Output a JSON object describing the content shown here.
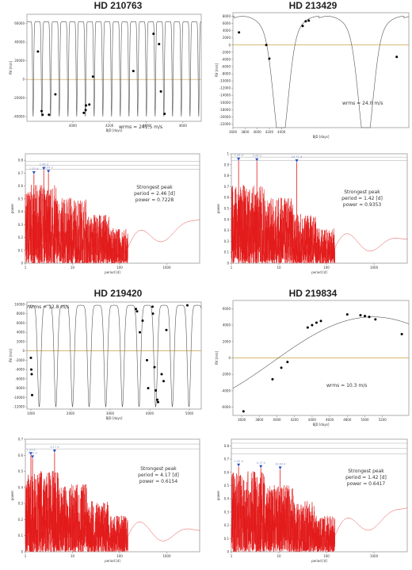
{
  "stars": [
    {
      "name": "HD 210763"
    },
    {
      "name": "HD 213429"
    },
    {
      "name": "HD 219420"
    },
    {
      "name": "HD 219834"
    }
  ],
  "colors": {
    "curve": "#555555",
    "zero_line": "#c8a040",
    "periodogram": "#e31b1b",
    "peak_marker": "#3050c0",
    "fap_line": "#aaaaaa",
    "grid": "#dddddd"
  },
  "chart_data": [
    {
      "type": "line",
      "panel": "rv-1",
      "title": "HD 210763",
      "xlabel": "BJD [days]",
      "ylabel": "RV [m/s]",
      "xlim": [
        3750,
        4700
      ],
      "ylim": [
        -45000,
        70000
      ],
      "xticks": [
        "4000",
        "4200",
        "4400",
        "4600"
      ],
      "yticks": [
        "-40000",
        "-20000",
        "0",
        "20000",
        "40000",
        "60000"
      ],
      "model": {
        "period": 47.5,
        "phase": 3760,
        "amp": 52000,
        "offset": 10000,
        "eccentric_dip": true
      },
      "points": [
        [
          3810,
          30000
        ],
        [
          3830,
          -34000
        ],
        [
          3835,
          -38000
        ],
        [
          3870,
          -38000
        ],
        [
          3905,
          -16000
        ],
        [
          4060,
          -36000
        ],
        [
          4070,
          -33000
        ],
        [
          4072,
          -28000
        ],
        [
          4090,
          -27000
        ],
        [
          4110,
          3000
        ],
        [
          4330,
          9000
        ],
        [
          4440,
          49000
        ],
        [
          4470,
          38000
        ],
        [
          4480,
          -13000
        ],
        [
          4500,
          -37000
        ]
      ],
      "annotation": "wrms = 241.5 m/s"
    },
    {
      "type": "line",
      "panel": "rv-2",
      "title": "HD 213429",
      "xlabel": "BJD [days]",
      "ylabel": "RV [m/s]",
      "xlim": [
        3600,
        6500
      ],
      "ylim": [
        -23000,
        9000
      ],
      "xticks": [
        "3600",
        "3800",
        "4000",
        "4200",
        "4400"
      ],
      "yticks": [
        "-22000",
        "-20000",
        "-18000",
        "-16000",
        "-14000",
        "-12000",
        "-10000",
        "-8000",
        "-6000",
        "-4000",
        "-2000",
        "0",
        "2000",
        "4000",
        "6000",
        "8000"
      ],
      "points": [
        [
          3700,
          3500
        ],
        [
          4150,
          0
        ],
        [
          4200,
          -3800
        ],
        [
          4750,
          5300
        ],
        [
          4800,
          6600
        ],
        [
          4850,
          6800
        ],
        [
          6300,
          -3300
        ]
      ],
      "annotation": "wrms = 24.0 m/s"
    },
    {
      "type": "line",
      "panel": "rv-3",
      "title": "HD 219420",
      "xlabel": "BJD [days]",
      "ylabel": "RV [m/s]",
      "xlim": [
        900,
        5300
      ],
      "ylim": [
        -12500,
        10500
      ],
      "xticks": [
        "1000",
        "2000",
        "3000",
        "4000",
        "5000"
      ],
      "yticks": [
        "-12000",
        "-10000",
        "-8000",
        "-6000",
        "-4000",
        "-2000",
        "0",
        "2000",
        "4000",
        "6000",
        "8000",
        "10000"
      ],
      "model": {
        "period": 420,
        "phase": 1000,
        "amp": 10500,
        "offset": -1000
      },
      "points": [
        [
          1000,
          -1500
        ],
        [
          1010,
          -4000
        ],
        [
          1020,
          -5000
        ],
        [
          1030,
          -9500
        ],
        [
          3650,
          9000
        ],
        [
          3680,
          8500
        ],
        [
          3750,
          4000
        ],
        [
          3820,
          6500
        ],
        [
          3930,
          -2000
        ],
        [
          3960,
          -8000
        ],
        [
          4070,
          9500
        ],
        [
          4080,
          8000
        ],
        [
          4120,
          -3500
        ],
        [
          4150,
          -8500
        ],
        [
          4190,
          -10500
        ],
        [
          4210,
          -11000
        ],
        [
          4300,
          -5000
        ],
        [
          4350,
          -6500
        ],
        [
          4420,
          4500
        ],
        [
          4950,
          9800
        ]
      ],
      "annotation": "wrms = 12.8 m/s"
    },
    {
      "type": "line",
      "panel": "rv-4",
      "title": "HD 219834",
      "xlabel": "BJD [days]",
      "ylabel": "RV [m/s]",
      "xlim": [
        3500,
        5500
      ],
      "ylim": [
        -7000,
        7000
      ],
      "xticks": [
        "3600",
        "3800",
        "4000",
        "4200",
        "4400",
        "4600",
        "4800",
        "5000",
        "5200"
      ],
      "yticks": [
        "-6000",
        "-4000",
        "-2000",
        "0",
        "2000",
        "4000",
        "6000"
      ],
      "points": [
        [
          3620,
          -6500
        ],
        [
          3950,
          -2600
        ],
        [
          4050,
          -1200
        ],
        [
          4120,
          -500
        ],
        [
          4350,
          3700
        ],
        [
          4400,
          4000
        ],
        [
          4450,
          4300
        ],
        [
          4500,
          4500
        ],
        [
          4800,
          5300
        ],
        [
          4950,
          5200
        ],
        [
          5000,
          5100
        ],
        [
          5050,
          5000
        ],
        [
          5120,
          4700
        ],
        [
          5420,
          2900
        ]
      ],
      "annotation": "wrms = 10.3 m/s"
    },
    {
      "type": "line",
      "panel": "pg-1",
      "xlabel": "period [d]",
      "ylabel": "power",
      "ylim": [
        0,
        0.85
      ],
      "yticks": [
        "0",
        "0.1",
        "0.2",
        "0.3",
        "0.4",
        "0.5",
        "0.6",
        "0.7",
        "0.8"
      ],
      "xticks": [
        "1",
        "10",
        "100",
        "1000"
      ],
      "xscale": "log",
      "fap_levels": [
        0.73,
        0.76,
        0.79
      ],
      "peaks": [
        {
          "label": "1.52 d",
          "period": 1.52,
          "power": 0.69
        },
        {
          "label": "2.46 d",
          "period": 2.46,
          "power": 0.7228
        },
        {
          "label": "3.09 d",
          "period": 3.09,
          "power": 0.7
        }
      ],
      "peak_text_label": "2.46 d",
      "annotation": {
        "line1": "Strongest peak",
        "line2": "period = 2.46 [d]",
        "line3": "power = 0.7228"
      }
    },
    {
      "type": "line",
      "panel": "pg-2",
      "xlabel": "period [d]",
      "ylabel": "power",
      "ylim": [
        0,
        1.0
      ],
      "yticks": [
        "0",
        "0.1",
        "0.2",
        "0.3",
        "0.4",
        "0.5",
        "0.6",
        "0.7",
        "0.8",
        "0.9",
        "1"
      ],
      "xticks": [
        "1",
        "10",
        "100",
        "1000"
      ],
      "xscale": "log",
      "fap_levels": [
        0.94,
        0.97
      ],
      "peaks": [
        {
          "label": "1.42 d",
          "period": 1.42,
          "power": 0.9353
        },
        {
          "label": "3.44 d",
          "period": 3.44,
          "power": 0.93
        },
        {
          "label": "23.71 d",
          "period": 23.71,
          "power": 0.92
        }
      ],
      "annotation": {
        "line1": "Strongest peak",
        "line2": "period = 1.42 [d]",
        "line3": "power = 0.9353"
      }
    },
    {
      "type": "line",
      "panel": "pg-3",
      "xlabel": "period [d]",
      "ylabel": "power",
      "ylim": [
        0,
        0.7
      ],
      "yticks": [
        "0",
        "0.1",
        "0.2",
        "0.3",
        "0.4",
        "0.5",
        "0.6",
        "0.7"
      ],
      "xticks": [
        "1",
        "10",
        "100",
        "1000"
      ],
      "xscale": "log",
      "fap_levels": [
        0.64,
        0.67,
        0.7
      ],
      "peaks": [
        {
          "label": "1.31 d",
          "period": 1.31,
          "power": 0.6
        },
        {
          "label": "1.42 d",
          "period": 1.42,
          "power": 0.58
        },
        {
          "label": "4.17 d",
          "period": 4.17,
          "power": 0.6154
        }
      ],
      "annotation": {
        "line1": "Strongest peak",
        "line2": "period = 4.17 [d]",
        "line3": "power = 0.6154"
      }
    },
    {
      "type": "line",
      "panel": "pg-4",
      "xlabel": "period [d]",
      "ylabel": "power",
      "ylim": [
        0,
        0.85
      ],
      "yticks": [
        "0",
        "0.1",
        "0.2",
        "0.3",
        "0.4",
        "0.5",
        "0.6",
        "0.7",
        "0.8"
      ],
      "xticks": [
        "1",
        "10",
        "100",
        "1000"
      ],
      "xscale": "log",
      "fap_levels": [
        0.74,
        0.78,
        0.82
      ],
      "peaks": [
        {
          "label": "1.42 d",
          "period": 1.42,
          "power": 0.6417
        },
        {
          "label": "4.17 d",
          "period": 4.17,
          "power": 0.63
        },
        {
          "label": "10.64 d",
          "period": 10.64,
          "power": 0.62
        }
      ],
      "annotation": {
        "line1": "Strongest peak",
        "line2": "period = 1.42 [d]",
        "line3": "power = 0.6417"
      }
    }
  ]
}
